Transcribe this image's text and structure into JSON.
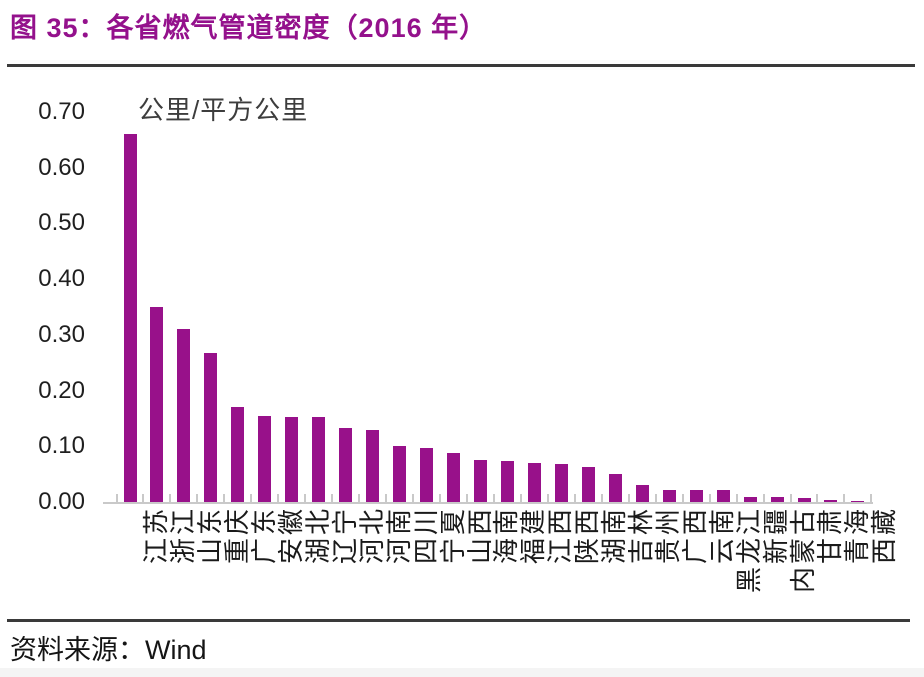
{
  "header": {
    "title": "图 35：各省燃气管道密度（2016 年）"
  },
  "footer": {
    "source_label": "资料来源：",
    "source_value": "Wind"
  },
  "colors": {
    "accent": "#98118a",
    "rule": "#3a3a3a",
    "axis": "#c9c9c9",
    "text": "#1a1a1a"
  },
  "chart_data": {
    "type": "bar",
    "title": "各省燃气管道密度（2016 年）",
    "unit_label": "公里/平方公里",
    "categories": [
      "江苏",
      "浙江",
      "山东",
      "重庆",
      "广东",
      "安徽",
      "湖北",
      "辽宁",
      "河北",
      "河南",
      "四川",
      "宁夏",
      "山西",
      "海南",
      "福建",
      "江西",
      "陕西",
      "湖南",
      "吉林",
      "贵州",
      "广西",
      "云南",
      "黑龙江",
      "新疆",
      "内蒙古",
      "甘肃",
      "青海",
      "西藏"
    ],
    "values": [
      0.66,
      0.35,
      0.31,
      0.267,
      0.17,
      0.155,
      0.153,
      0.152,
      0.133,
      0.129,
      0.1,
      0.097,
      0.088,
      0.075,
      0.073,
      0.07,
      0.068,
      0.062,
      0.05,
      0.03,
      0.022,
      0.022,
      0.021,
      0.009,
      0.009,
      0.007,
      0.004,
      0.002
    ],
    "ylim": [
      0,
      0.7
    ],
    "ytick_labels": [
      "0.00",
      "0.10",
      "0.20",
      "0.30",
      "0.40",
      "0.50",
      "0.60",
      "0.70"
    ],
    "grid": false,
    "legend": "none",
    "bar_color": "#98118a"
  }
}
